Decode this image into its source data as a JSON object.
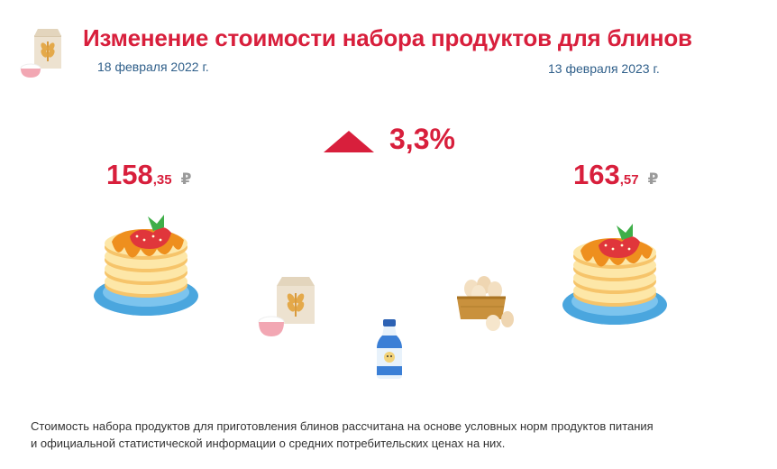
{
  "header": {
    "title": "Изменение стоимости набора продуктов для блинов"
  },
  "left": {
    "date": "18 февраля 2022 г.",
    "price_int": "158",
    "price_frac": ",35",
    "currency": "₽"
  },
  "right": {
    "date": "13 февраля 2023 г.",
    "price_int": "163",
    "price_frac": ",57",
    "currency": "₽"
  },
  "change": {
    "value": "3,3%",
    "direction": "up"
  },
  "footnote": {
    "line1": "Стоимость набора продуктов для приготовления блинов рассчитана на основе условных норм продуктов питания",
    "line2": "и официальной статистической информации о средних потребительских ценах на них."
  },
  "icons": [
    "flour-bag-icon",
    "pancake-stack-icon",
    "milk-bottle-icon",
    "egg-basket-icon",
    "up-triangle-icon"
  ],
  "colors": {
    "accent": "#d81f3c",
    "date": "#2f5f8a",
    "currency": "#9a9a9a",
    "text": "#333333"
  }
}
